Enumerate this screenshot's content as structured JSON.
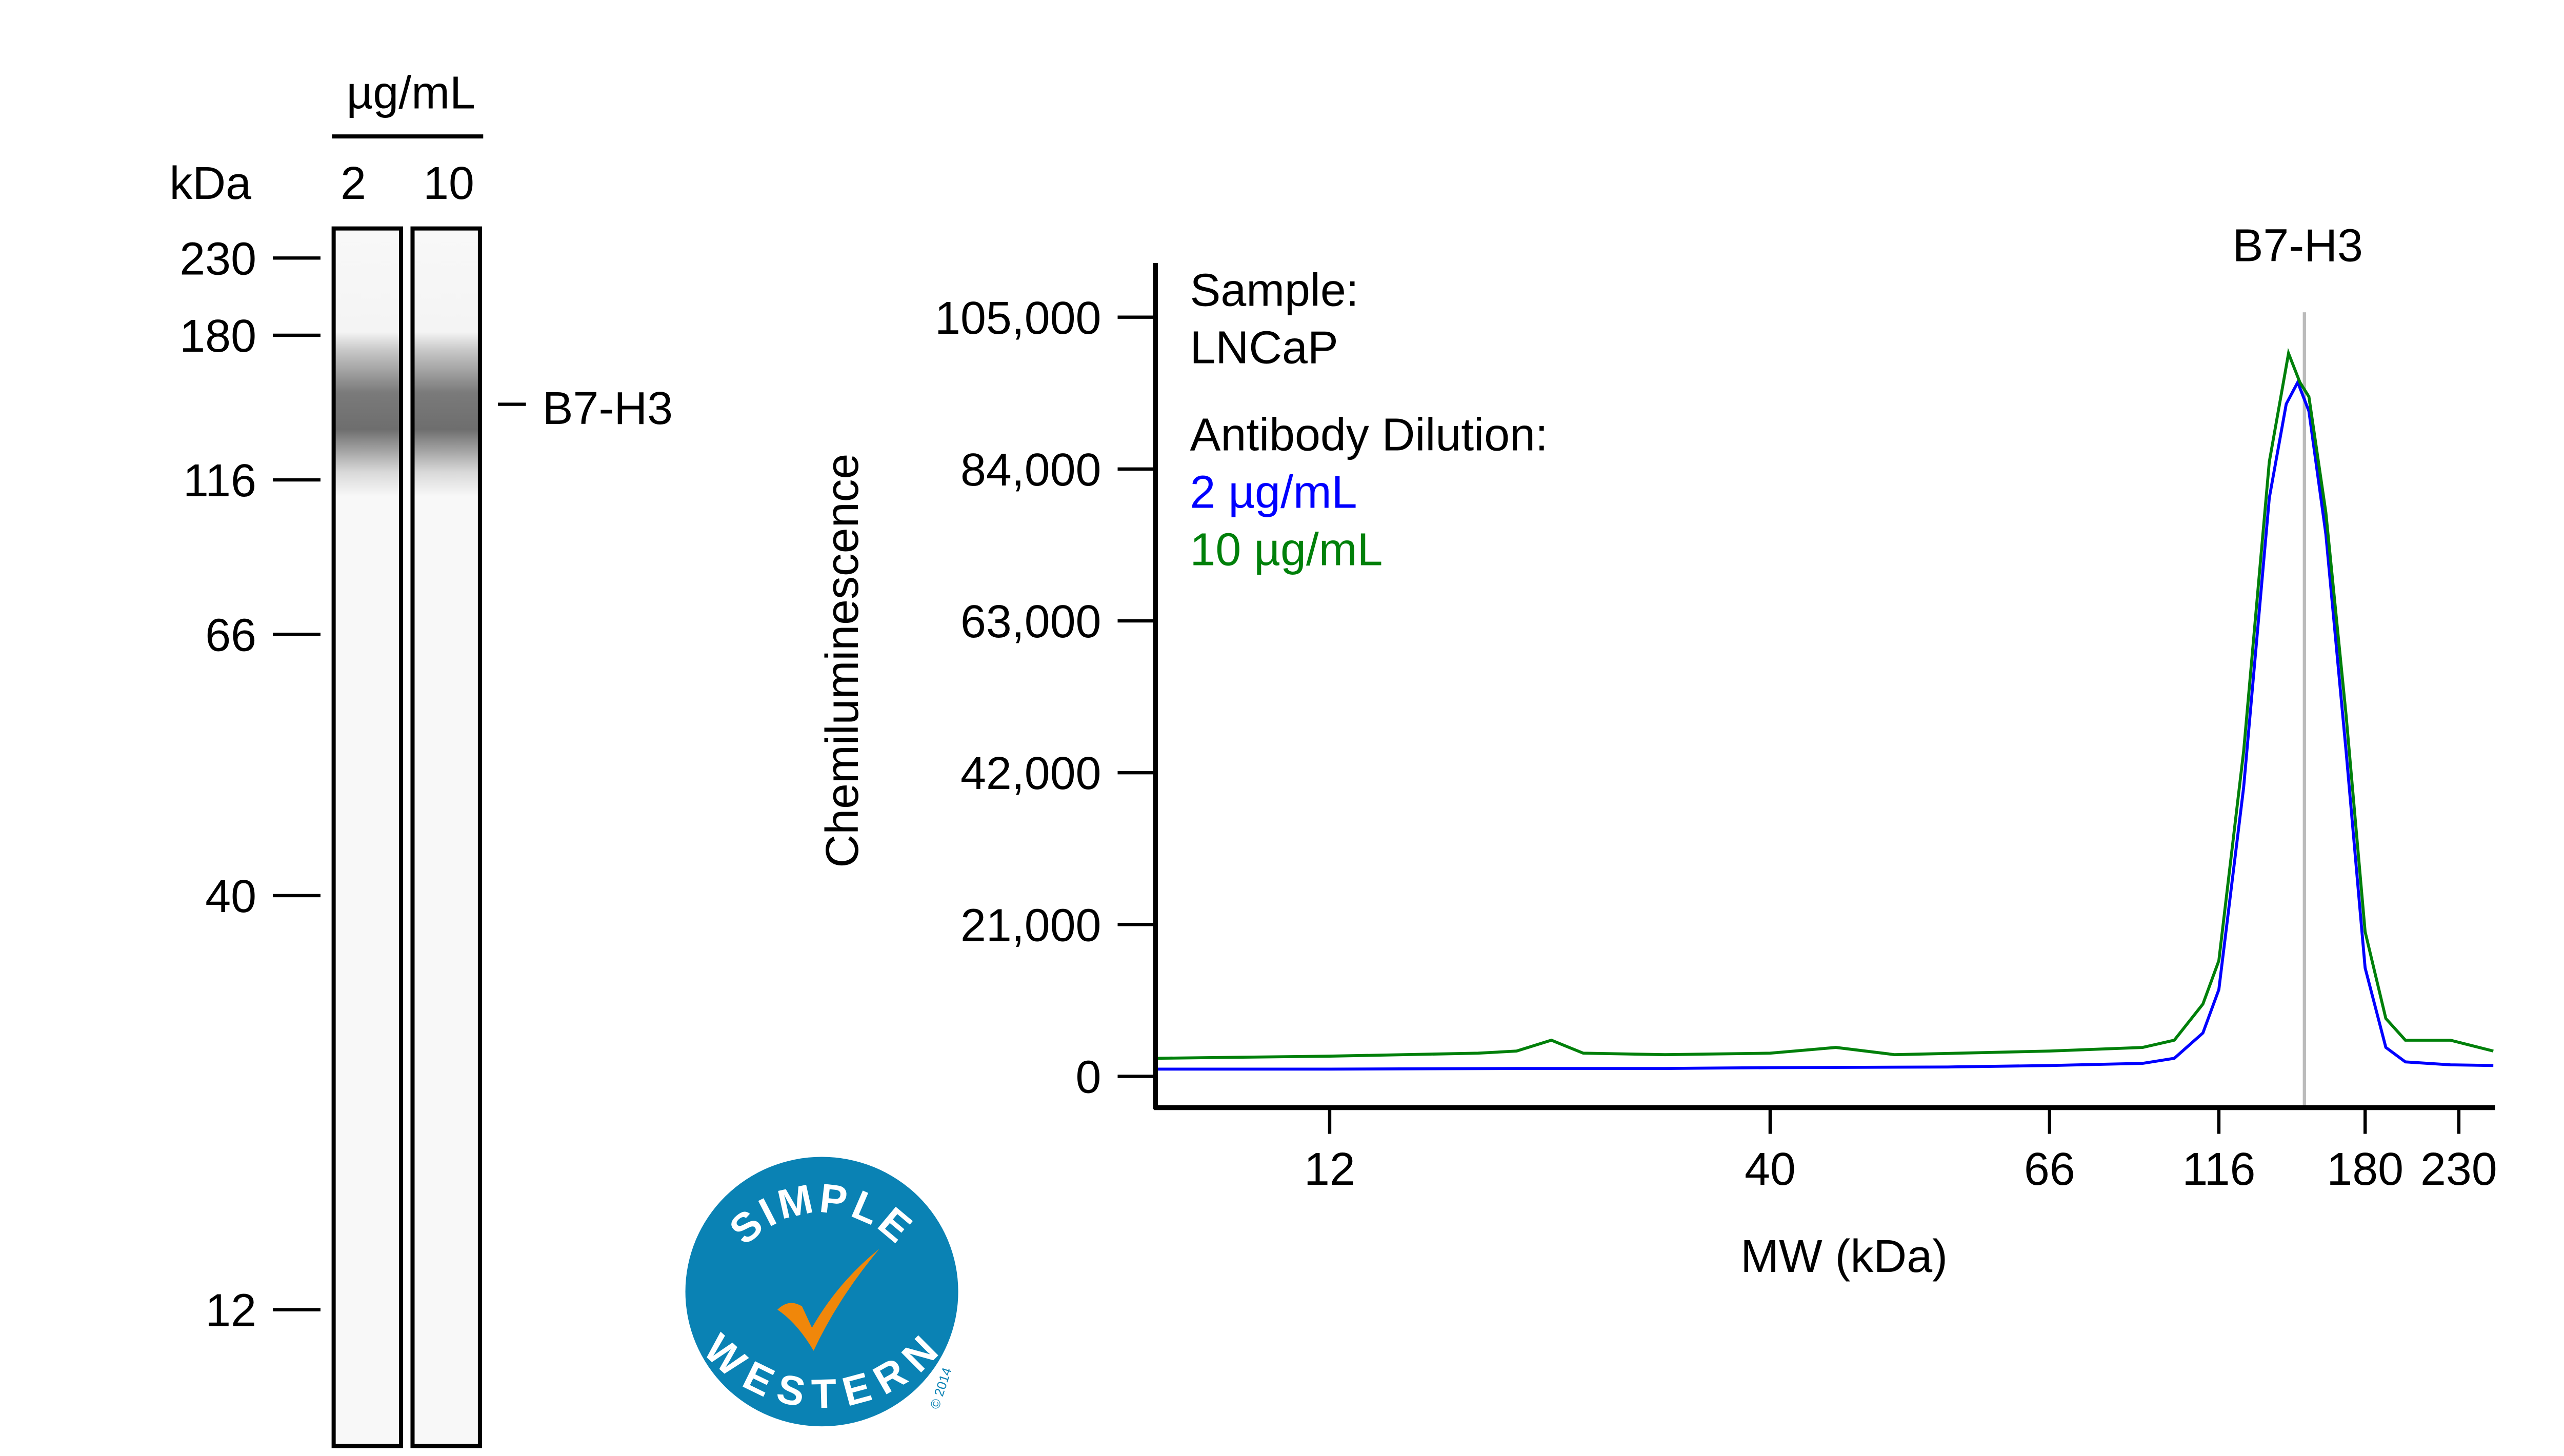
{
  "lane_view": {
    "unit_label": "kDa",
    "concentration_unit": "µg/mL",
    "lanes": [
      {
        "label": "2"
      },
      {
        "label": "10"
      }
    ],
    "markers": [
      "230",
      "180",
      "116",
      "66",
      "40",
      "12"
    ],
    "band_label": "B7-H3"
  },
  "logo": {
    "top_text": "SIMPLE",
    "bottom_text": "WESTERN",
    "copyright": "© 2014",
    "colors": {
      "circle": "#0a82b4",
      "check": "#f0870a"
    }
  },
  "chart_data": {
    "type": "line",
    "title": "B7-H3",
    "xlabel": "MW (kDa)",
    "ylabel": "Chemiluminescence",
    "x_ticks": [
      "12",
      "40",
      "66",
      "116",
      "180",
      "230"
    ],
    "y_ticks": [
      "0",
      "21,000",
      "42,000",
      "63,000",
      "84,000",
      "105,000"
    ],
    "ylim": [
      0,
      105000
    ],
    "xlim": [
      7.5,
      250
    ],
    "x_scale": "nonlinear (MW)",
    "grid": false,
    "peak_marker_kDa": 150,
    "legend": {
      "placement": "top-left",
      "sample_heading": "Sample:",
      "sample": "LNCaP",
      "dilution_heading": "Antibody Dilution:"
    },
    "series": [
      {
        "name": "2 µg/mL",
        "color": "#0000ff",
        "x": [
          7.5,
          12,
          20,
          30,
          40,
          55,
          66,
          90,
          100,
          110,
          116,
          125,
          135,
          142,
          147,
          152,
          160,
          170,
          180,
          190,
          200,
          225,
          250
        ],
        "y": [
          1000,
          1000,
          1100,
          1100,
          1200,
          1300,
          1500,
          1800,
          2500,
          6000,
          12000,
          40000,
          80000,
          93000,
          96000,
          92000,
          75000,
          45000,
          15000,
          4000,
          2000,
          1600,
          1500
        ]
      },
      {
        "name": "10 µg/mL",
        "color": "#00800a",
        "x": [
          7.5,
          12,
          18,
          20,
          22,
          24,
          30,
          40,
          45,
          50,
          66,
          90,
          100,
          110,
          116,
          125,
          135,
          143,
          148,
          152,
          160,
          170,
          180,
          190,
          200,
          225,
          250
        ],
        "y": [
          2500,
          2800,
          3200,
          3500,
          5000,
          3200,
          3000,
          3200,
          4000,
          3000,
          3500,
          4000,
          5000,
          10000,
          16000,
          45000,
          85000,
          100000,
          96000,
          94000,
          78000,
          50000,
          20000,
          8000,
          5000,
          5000,
          3500
        ]
      }
    ]
  }
}
